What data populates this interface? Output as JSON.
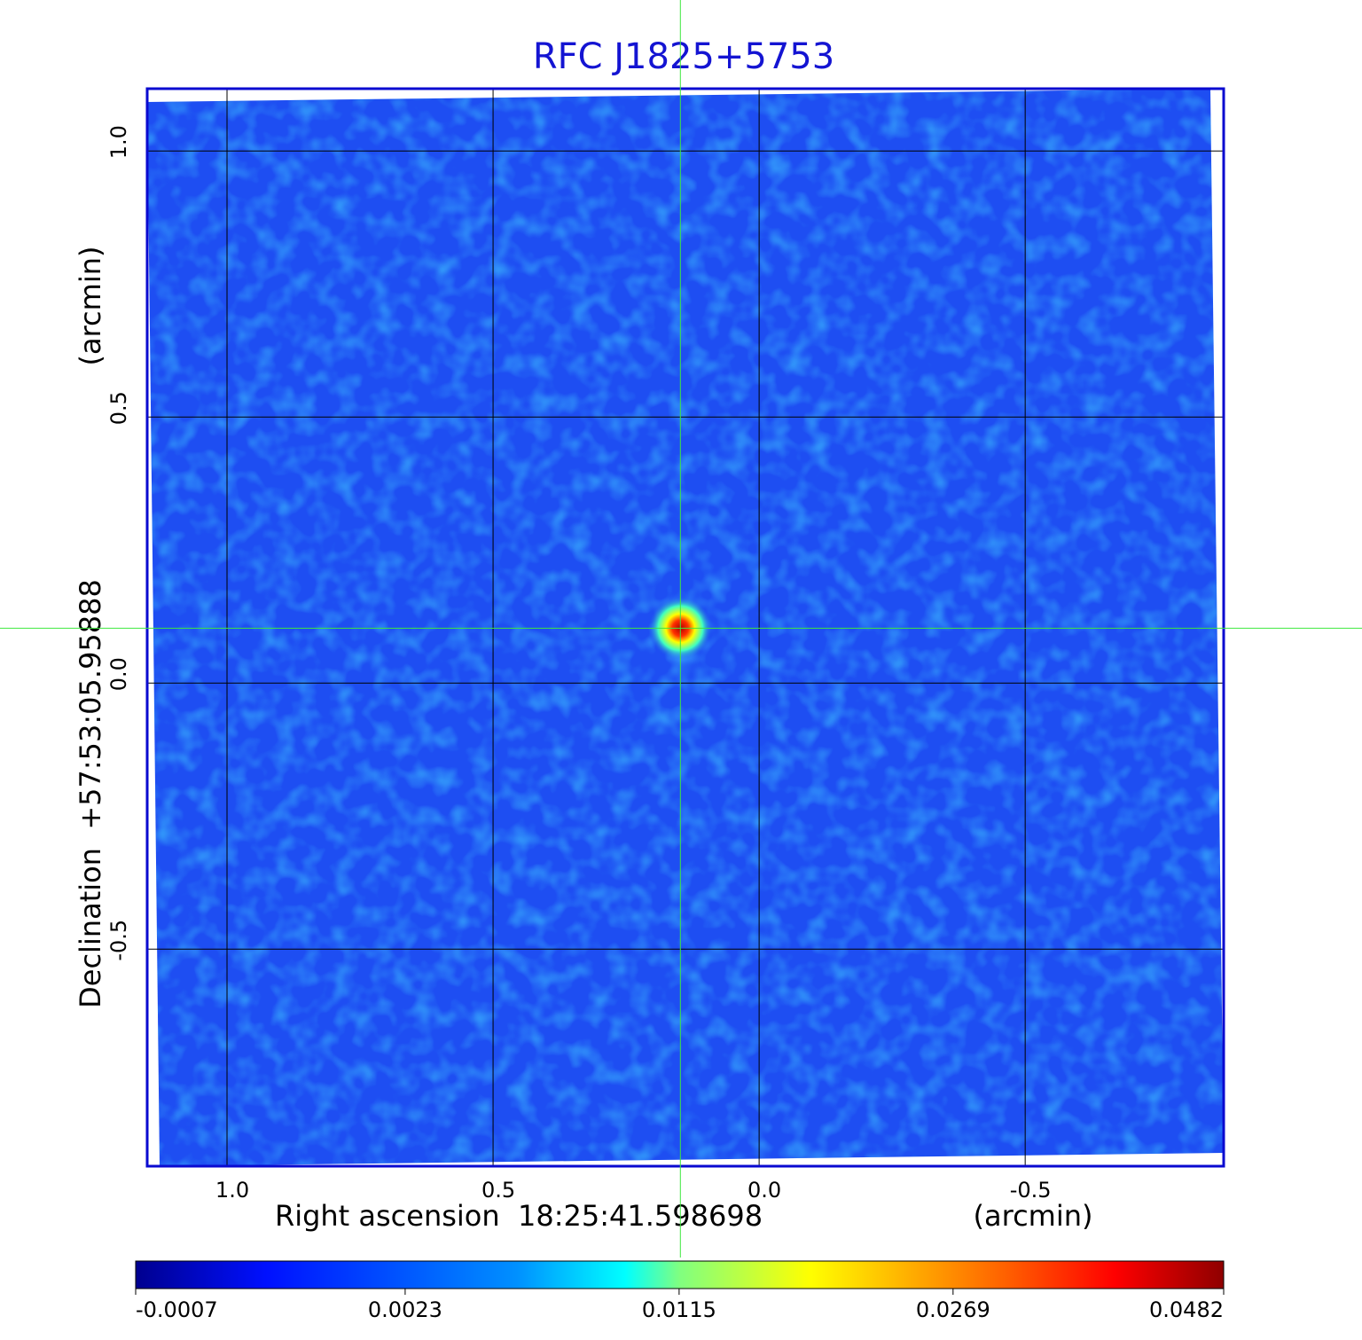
{
  "chart_data": {
    "type": "image",
    "title": "RFC J1825+5753",
    "x_label": "Right ascension  18:25:41.598698",
    "x_unit": "(arcmin)",
    "y_label": "Declination  +57:53:05.95888",
    "y_unit": "(arcmin)",
    "xlim": [
      1.15,
      -0.873
    ],
    "ylim": [
      -0.908,
      1.117
    ],
    "xticks": [
      {
        "value": 1,
        "label": "1.0"
      },
      0.5,
      {
        "value": 0,
        "label": "0.0"
      },
      -0.5
    ],
    "yticks": [
      -0.5,
      {
        "value": 0,
        "label": "0.0"
      },
      0.5,
      {
        "value": 1,
        "label": "1.0"
      }
    ],
    "grid": true,
    "crosshair": {
      "x": 0.148,
      "y": 0.103
    },
    "colorbar": {
      "colormap": "jet",
      "scale": "sqrt",
      "lim": [
        -0.0007,
        0.0482
      ],
      "ticks": [
        -0.0007,
        0.0023,
        0.0115,
        0.0269,
        0.0482
      ]
    }
  }
}
